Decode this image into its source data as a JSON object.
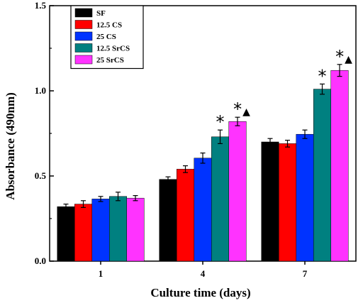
{
  "chart_data": {
    "type": "bar",
    "title": "",
    "xlabel": "Culture time (days)",
    "ylabel": "Absorbance (490nm)",
    "ylim": [
      0.0,
      1.5
    ],
    "yticks": [
      "0.0",
      "0.5",
      "1.0",
      "1.5"
    ],
    "categories": [
      "1",
      "4",
      "7"
    ],
    "legend_position": "top-left",
    "grid": false,
    "series": [
      {
        "name": "SF",
        "color": "#000000",
        "values": [
          0.32,
          0.48,
          0.7
        ],
        "errors": [
          0.015,
          0.015,
          0.02
        ]
      },
      {
        "name": "12.5 CS",
        "color": "#ff0000",
        "values": [
          0.335,
          0.54,
          0.69
        ],
        "errors": [
          0.02,
          0.02,
          0.02
        ]
      },
      {
        "name": "25 CS",
        "color": "#0033ff",
        "values": [
          0.365,
          0.605,
          0.745
        ],
        "errors": [
          0.015,
          0.03,
          0.025
        ]
      },
      {
        "name": "12.5 SrCS",
        "color": "#008080",
        "values": [
          0.38,
          0.73,
          1.01
        ],
        "errors": [
          0.025,
          0.04,
          0.03
        ]
      },
      {
        "name": "25 SrCS",
        "color": "#ff33ff",
        "values": [
          0.37,
          0.82,
          1.12
        ],
        "errors": [
          0.015,
          0.025,
          0.035
        ]
      }
    ],
    "annotations": [
      {
        "category": "4",
        "series": "12.5 SrCS",
        "text": "*"
      },
      {
        "category": "4",
        "series": "25 SrCS",
        "text": "*▲"
      },
      {
        "category": "7",
        "series": "12.5 SrCS",
        "text": "*"
      },
      {
        "category": "7",
        "series": "25 SrCS",
        "text": "*▲"
      }
    ]
  }
}
